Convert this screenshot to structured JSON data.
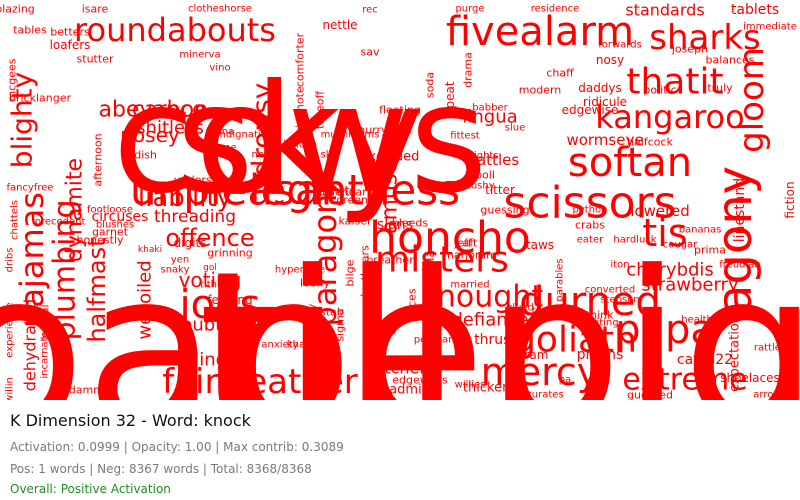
{
  "panel": {
    "title": "K Dimension 32 - Word: knock",
    "line1": "Activation: 0.0999 | Opacity: 1.00 | Max contrib: 0.3089",
    "line2": "Pos: 1 words | Neg: 8367 words | Total: 8368/8368",
    "overall": "Overall: Positive Activation"
  },
  "colors": {
    "cloud_words": "#ff0000",
    "overall": "#228b22",
    "stat_text": "#7a7a7a"
  },
  "cloud": {
    "words": [
      "cows",
      "till",
      "unpleasantness",
      "honcho",
      "fivealarm",
      "roundabouts",
      "scissors",
      "softan",
      "fairweather",
      "mercy",
      "misters",
      "agony",
      "gloom",
      "papa",
      "joes",
      "goliath",
      "durned",
      "sharks",
      "thatit",
      "kangaroo",
      "pajamas",
      "blighty",
      "plumbing",
      "paragon",
      "nought",
      "extreme",
      "liability",
      "offence",
      "tis",
      "voting",
      "halfmast",
      "abeyance",
      "nosey",
      "carbon",
      "dropsy",
      "shitless",
      "dynamite",
      "dehydrated",
      "doubting",
      "wellington",
      "welloiled",
      "standards",
      "tablets",
      "charybdis",
      "strawberry",
      "defiance",
      "thrust",
      "prisms",
      "butcher",
      "treadmill",
      "thickens",
      "catch22",
      "expectations",
      "shoelaces",
      "lingua",
      "rattles",
      "lowered",
      "threading",
      "circuses",
      "digits",
      "feeding",
      "grinning",
      "understood",
      "asome",
      "fauna",
      "radish",
      "nellie",
      "excluded",
      "ferrets",
      "closenear",
      "wormseye",
      "halfcock",
      "nosy",
      "ridicule",
      "daddys",
      "chaff",
      "babber",
      "slue",
      "fittest",
      "heights",
      "poll",
      "cushy",
      "titter",
      "amused",
      "slans",
      "jeff",
      "aft",
      "taws",
      "marjoram",
      "married",
      "pennsylvania",
      "anxiety",
      "khazi",
      "judas",
      "slew",
      "skis",
      "jericho",
      "greens",
      "kaiser",
      "bleeds",
      "guessing",
      "python",
      "crabs",
      "eater",
      "hardluck",
      "prima",
      "linestand",
      "fiction",
      "bricklanger",
      "stutter",
      "loafers",
      "betters",
      "blazing",
      "tables",
      "isare",
      "clotheshorse",
      "minerva",
      "vino",
      "nettle",
      "sav",
      "rec",
      "purge",
      "residence",
      "forwards",
      "politic",
      "truly",
      "balances",
      "joseph",
      "immediate",
      "dammit",
      "edgeways",
      "willies",
      "guessed",
      "curates",
      "arrows",
      "healthy",
      "rattles",
      "freudian",
      "bananas",
      "cougar",
      "iton",
      "soda",
      "peat",
      "drama",
      "fleeting",
      "hurryrush",
      "modern",
      "takeoff",
      "sidenote",
      "comforter",
      "indignation",
      "mushrooms",
      "edgewise",
      "converted",
      "seethink",
      "scram",
      "pa",
      "mcgees",
      "footloose",
      "dribs",
      "experience",
      "herbal",
      "incarnate",
      "willin",
      "chattels",
      "fancyfree",
      "precedent",
      "afternoon",
      "blushes",
      "honestly",
      "garnet",
      "tithier",
      "snaky",
      "yen",
      "gol",
      "khaki",
      "hyperbole",
      "loony",
      "shotstab",
      "gisepay",
      "sigma",
      "deathears",
      "bilge",
      "breather",
      "afoul",
      "prices",
      "parables",
      "tad",
      "stepson",
      "inviting",
      "glued",
      "perchance",
      "sky",
      "soapepig",
      "legit"
    ]
  }
}
